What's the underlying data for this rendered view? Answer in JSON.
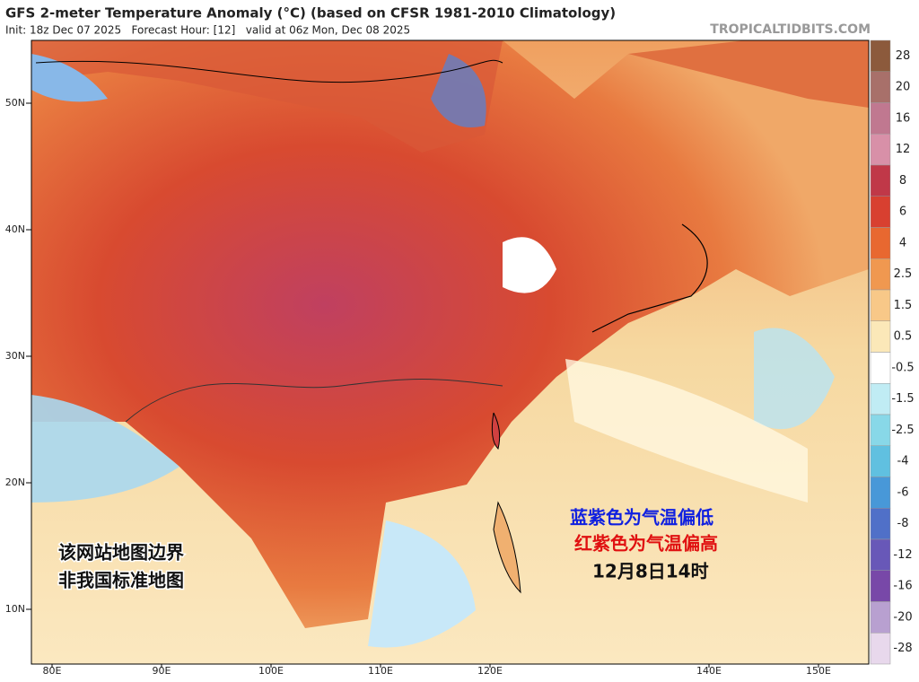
{
  "header": {
    "title": "GFS 2-meter Temperature Anomaly (°C) (based on CFSR 1981-2010 Climatology)",
    "subtitle": "Init: 18z Dec 07 2025   Forecast Hour: [12]   valid at 06z Mon, Dec 08 2025",
    "source": "TROPICALTIDBITS.COM"
  },
  "map": {
    "lat_labels": [
      "50N",
      "40N",
      "30N",
      "20N",
      "10N"
    ],
    "lon_labels": [
      "80E",
      "90E",
      "100E",
      "110E",
      "120E",
      "140E",
      "150E"
    ],
    "legend_note": [
      "蓝紫色为气温偏低",
      "红紫色为气温偏高",
      "12月8日14时"
    ],
    "disclaimer": [
      "该网站地图边界",
      "非我国标准地图"
    ]
  },
  "colorbar": {
    "ticks": [
      28,
      20,
      16,
      12,
      8,
      6,
      4,
      2.5,
      1.5,
      0.5,
      -0.5,
      -1.5,
      -2.5,
      -4,
      -6,
      -8,
      -12,
      -16,
      -20,
      -28
    ],
    "colors": [
      "#8c5a3c",
      "#a8706a",
      "#c07890",
      "#d890a8",
      "#c03848",
      "#d84030",
      "#e86830",
      "#f09850",
      "#f8c888",
      "#fbe8b8",
      "#ffffff",
      "#c0ecf4",
      "#88d8e8",
      "#60c0e0",
      "#4898d8",
      "#5070c8",
      "#6858b8",
      "#7848a8",
      "#b8a0d0",
      "#e8d8ec"
    ]
  }
}
